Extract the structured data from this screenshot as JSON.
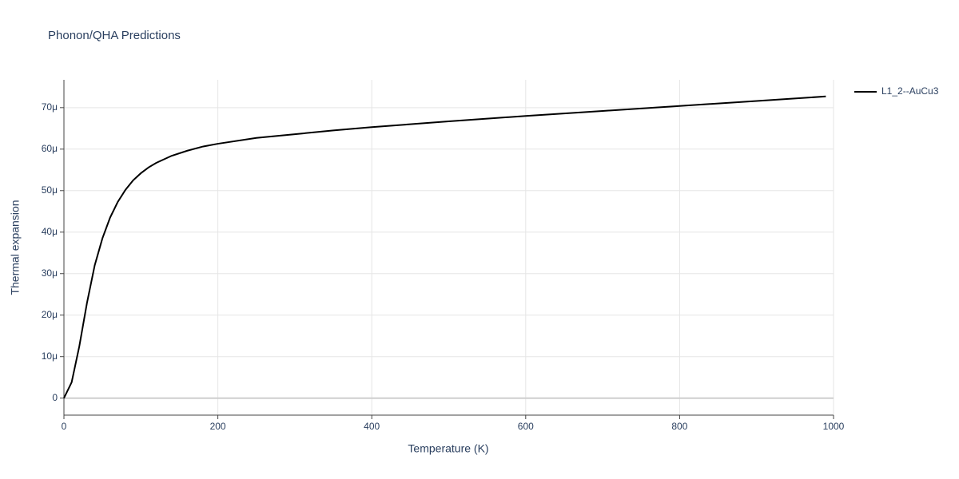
{
  "chart_data": {
    "type": "line",
    "title": "Phonon/QHA Predictions",
    "x_label": "Temperature (K)",
    "y_label": "Thermal expansion",
    "x": [
      0,
      10,
      20,
      30,
      40,
      50,
      60,
      70,
      80,
      90,
      100,
      110,
      120,
      140,
      160,
      180,
      200,
      250,
      300,
      350,
      400,
      500,
      600,
      700,
      800,
      900,
      990
    ],
    "series": [
      {
        "name": "L1_2--AuCu3",
        "color": "#000000",
        "values": [
          0,
          3.8e-06,
          1.25e-05,
          2.3e-05,
          3.2e-05,
          3.85e-05,
          4.35e-05,
          4.73e-05,
          5.02e-05,
          5.25e-05,
          5.42e-05,
          5.56e-05,
          5.67e-05,
          5.84e-05,
          5.96e-05,
          6.06e-05,
          6.13e-05,
          6.27e-05,
          6.36e-05,
          6.45e-05,
          6.53e-05,
          6.67e-05,
          6.8e-05,
          6.92e-05,
          7.04e-05,
          7.16e-05,
          7.27e-05
        ]
      }
    ],
    "xlim": [
      0,
      1000
    ],
    "xticks": [
      0,
      200,
      400,
      600,
      800,
      1000
    ],
    "ylim": [
      -4.1e-06,
      7.67e-05
    ],
    "yticks": [
      0,
      {
        "value": 1e-05,
        "label": "10μ"
      },
      {
        "value": 2e-05,
        "label": "20μ"
      },
      {
        "value": 3e-05,
        "label": "30μ"
      },
      {
        "value": 4e-05,
        "label": "40μ"
      },
      {
        "value": 5e-05,
        "label": "50μ"
      },
      {
        "value": 6e-05,
        "label": "60μ"
      },
      {
        "value": 7e-05,
        "label": "70μ"
      }
    ],
    "grid": true
  }
}
